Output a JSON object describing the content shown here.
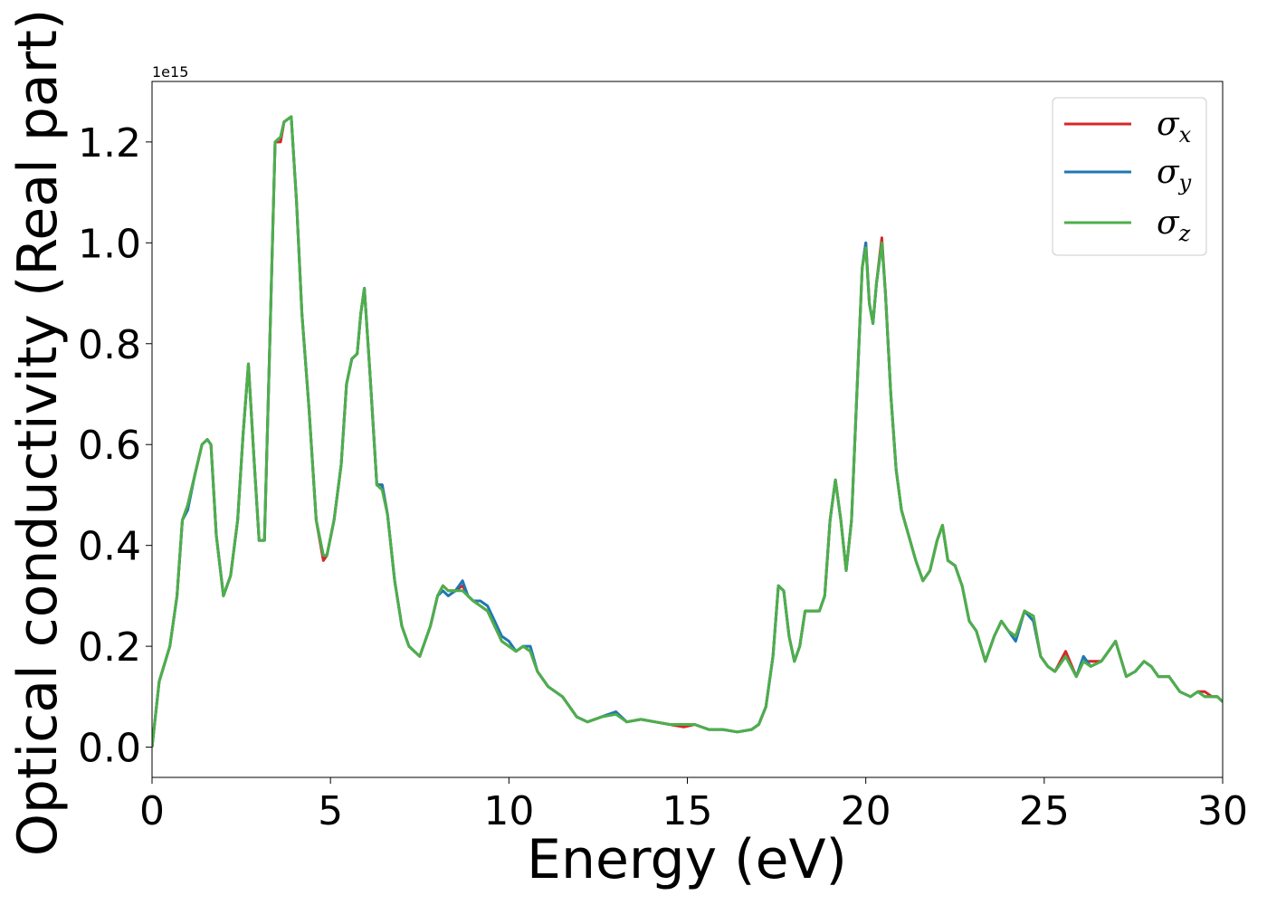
{
  "chart_data": {
    "type": "line",
    "title": "",
    "xlabel": "Energy (eV)",
    "ylabel": "Optical conductivity (Real part)",
    "y_offset_label": "1e15",
    "xlim": [
      0,
      30
    ],
    "ylim": [
      -0.06,
      1.32
    ],
    "xticks": [
      0,
      5,
      10,
      15,
      20,
      25,
      30
    ],
    "xtick_labels": [
      "0",
      "5",
      "10",
      "15",
      "20",
      "25",
      "30"
    ],
    "yticks": [
      0.0,
      0.2,
      0.4,
      0.6,
      0.8,
      1.0,
      1.2
    ],
    "ytick_labels": [
      "0.0",
      "0.2",
      "0.4",
      "0.6",
      "0.8",
      "1.0",
      "1.2"
    ],
    "grid": false,
    "legend_position": "top-right",
    "x": [
      0,
      0.2,
      0.5,
      0.7,
      0.85,
      1.0,
      1.2,
      1.4,
      1.55,
      1.65,
      1.8,
      2.0,
      2.2,
      2.4,
      2.55,
      2.7,
      2.85,
      3.0,
      3.15,
      3.3,
      3.45,
      3.6,
      3.7,
      3.9,
      4.05,
      4.2,
      4.4,
      4.6,
      4.8,
      4.9,
      5.1,
      5.3,
      5.45,
      5.6,
      5.75,
      5.85,
      5.95,
      6.1,
      6.3,
      6.45,
      6.6,
      6.8,
      7.0,
      7.2,
      7.5,
      7.8,
      8.0,
      8.15,
      8.3,
      8.5,
      8.7,
      8.85,
      9.0,
      9.2,
      9.4,
      9.6,
      9.8,
      10.0,
      10.2,
      10.4,
      10.6,
      10.8,
      11.1,
      11.5,
      11.9,
      12.2,
      12.6,
      13.0,
      13.3,
      13.7,
      14.1,
      14.5,
      14.9,
      15.2,
      15.6,
      16.0,
      16.4,
      16.8,
      17.0,
      17.2,
      17.4,
      17.55,
      17.7,
      17.85,
      18.0,
      18.15,
      18.3,
      18.5,
      18.7,
      18.85,
      19.0,
      19.15,
      19.3,
      19.45,
      19.6,
      19.75,
      19.9,
      20.0,
      20.1,
      20.2,
      20.3,
      20.45,
      20.55,
      20.7,
      20.85,
      21.0,
      21.2,
      21.4,
      21.6,
      21.8,
      22.0,
      22.15,
      22.3,
      22.5,
      22.7,
      22.9,
      23.1,
      23.35,
      23.6,
      23.8,
      24.0,
      24.2,
      24.45,
      24.7,
      24.9,
      25.1,
      25.3,
      25.6,
      25.9,
      26.1,
      26.3,
      26.6,
      26.8,
      27.0,
      27.3,
      27.55,
      27.8,
      28.0,
      28.2,
      28.5,
      28.8,
      29.1,
      29.3,
      29.5,
      29.7,
      29.85,
      30.0
    ],
    "series": [
      {
        "name": "σ_x",
        "color": "#d62728",
        "values": [
          0.0,
          0.13,
          0.2,
          0.3,
          0.45,
          0.48,
          0.54,
          0.6,
          0.61,
          0.6,
          0.42,
          0.3,
          0.34,
          0.45,
          0.62,
          0.76,
          0.58,
          0.41,
          0.41,
          0.8,
          1.2,
          1.2,
          1.24,
          1.25,
          1.08,
          0.86,
          0.67,
          0.45,
          0.37,
          0.38,
          0.45,
          0.56,
          0.72,
          0.77,
          0.78,
          0.86,
          0.91,
          0.75,
          0.52,
          0.52,
          0.46,
          0.33,
          0.24,
          0.2,
          0.18,
          0.24,
          0.3,
          0.32,
          0.31,
          0.31,
          0.32,
          0.3,
          0.29,
          0.28,
          0.27,
          0.24,
          0.21,
          0.2,
          0.19,
          0.2,
          0.19,
          0.15,
          0.12,
          0.1,
          0.06,
          0.05,
          0.06,
          0.07,
          0.05,
          0.055,
          0.05,
          0.045,
          0.04,
          0.045,
          0.035,
          0.035,
          0.03,
          0.035,
          0.045,
          0.08,
          0.18,
          0.32,
          0.31,
          0.22,
          0.17,
          0.2,
          0.27,
          0.27,
          0.27,
          0.3,
          0.45,
          0.53,
          0.45,
          0.35,
          0.45,
          0.7,
          0.95,
          1.0,
          0.88,
          0.84,
          0.92,
          1.01,
          0.9,
          0.7,
          0.55,
          0.47,
          0.42,
          0.37,
          0.33,
          0.35,
          0.41,
          0.44,
          0.37,
          0.36,
          0.32,
          0.25,
          0.23,
          0.17,
          0.22,
          0.25,
          0.23,
          0.22,
          0.27,
          0.25,
          0.18,
          0.16,
          0.15,
          0.19,
          0.14,
          0.17,
          0.17,
          0.17,
          0.19,
          0.21,
          0.14,
          0.15,
          0.17,
          0.16,
          0.14,
          0.14,
          0.11,
          0.1,
          0.11,
          0.11,
          0.1,
          0.1,
          0.09
        ]
      },
      {
        "name": "σ_y",
        "color": "#1f77b4",
        "values": [
          0.0,
          0.13,
          0.2,
          0.3,
          0.45,
          0.47,
          0.54,
          0.6,
          0.61,
          0.6,
          0.42,
          0.3,
          0.34,
          0.45,
          0.62,
          0.76,
          0.58,
          0.41,
          0.41,
          0.8,
          1.2,
          1.21,
          1.24,
          1.25,
          1.08,
          0.86,
          0.67,
          0.45,
          0.38,
          0.38,
          0.45,
          0.56,
          0.72,
          0.77,
          0.78,
          0.86,
          0.91,
          0.75,
          0.52,
          0.52,
          0.46,
          0.33,
          0.24,
          0.2,
          0.18,
          0.24,
          0.3,
          0.31,
          0.3,
          0.31,
          0.33,
          0.3,
          0.29,
          0.29,
          0.28,
          0.25,
          0.22,
          0.21,
          0.19,
          0.2,
          0.2,
          0.15,
          0.12,
          0.1,
          0.06,
          0.05,
          0.06,
          0.07,
          0.05,
          0.055,
          0.05,
          0.045,
          0.045,
          0.045,
          0.035,
          0.035,
          0.03,
          0.035,
          0.045,
          0.08,
          0.18,
          0.32,
          0.31,
          0.22,
          0.17,
          0.2,
          0.27,
          0.27,
          0.27,
          0.3,
          0.45,
          0.53,
          0.45,
          0.35,
          0.45,
          0.7,
          0.95,
          1.0,
          0.88,
          0.84,
          0.92,
          1.0,
          0.9,
          0.7,
          0.55,
          0.47,
          0.42,
          0.37,
          0.33,
          0.35,
          0.41,
          0.44,
          0.37,
          0.36,
          0.32,
          0.25,
          0.23,
          0.17,
          0.22,
          0.25,
          0.23,
          0.21,
          0.27,
          0.25,
          0.18,
          0.16,
          0.15,
          0.18,
          0.14,
          0.18,
          0.16,
          0.17,
          0.19,
          0.21,
          0.14,
          0.15,
          0.17,
          0.16,
          0.14,
          0.14,
          0.11,
          0.1,
          0.11,
          0.1,
          0.1,
          0.1,
          0.09
        ]
      },
      {
        "name": "σ_z",
        "color": "#4daf4a",
        "values": [
          0.0,
          0.13,
          0.2,
          0.3,
          0.45,
          0.48,
          0.54,
          0.6,
          0.61,
          0.6,
          0.42,
          0.3,
          0.34,
          0.45,
          0.62,
          0.76,
          0.58,
          0.41,
          0.41,
          0.8,
          1.2,
          1.21,
          1.24,
          1.25,
          1.08,
          0.86,
          0.67,
          0.45,
          0.38,
          0.38,
          0.45,
          0.56,
          0.72,
          0.77,
          0.78,
          0.86,
          0.91,
          0.75,
          0.52,
          0.51,
          0.46,
          0.33,
          0.24,
          0.2,
          0.18,
          0.24,
          0.3,
          0.32,
          0.31,
          0.31,
          0.31,
          0.3,
          0.29,
          0.28,
          0.27,
          0.24,
          0.21,
          0.2,
          0.19,
          0.2,
          0.19,
          0.15,
          0.12,
          0.1,
          0.06,
          0.05,
          0.06,
          0.065,
          0.05,
          0.055,
          0.05,
          0.045,
          0.045,
          0.045,
          0.035,
          0.035,
          0.03,
          0.035,
          0.045,
          0.08,
          0.18,
          0.32,
          0.31,
          0.22,
          0.17,
          0.2,
          0.27,
          0.27,
          0.27,
          0.3,
          0.45,
          0.53,
          0.45,
          0.35,
          0.45,
          0.7,
          0.95,
          0.99,
          0.88,
          0.84,
          0.92,
          1.0,
          0.9,
          0.7,
          0.55,
          0.47,
          0.42,
          0.37,
          0.33,
          0.35,
          0.41,
          0.44,
          0.37,
          0.36,
          0.32,
          0.25,
          0.23,
          0.17,
          0.22,
          0.25,
          0.23,
          0.22,
          0.27,
          0.26,
          0.18,
          0.16,
          0.15,
          0.18,
          0.14,
          0.17,
          0.16,
          0.17,
          0.19,
          0.21,
          0.14,
          0.15,
          0.17,
          0.16,
          0.14,
          0.14,
          0.11,
          0.1,
          0.11,
          0.1,
          0.1,
          0.1,
          0.09
        ]
      }
    ]
  },
  "legend": {
    "items": [
      {
        "symbol": "σ",
        "subscript": "x",
        "color": "#d62728"
      },
      {
        "symbol": "σ",
        "subscript": "y",
        "color": "#1f77b4"
      },
      {
        "symbol": "σ",
        "subscript": "z",
        "color": "#4daf4a"
      }
    ]
  }
}
